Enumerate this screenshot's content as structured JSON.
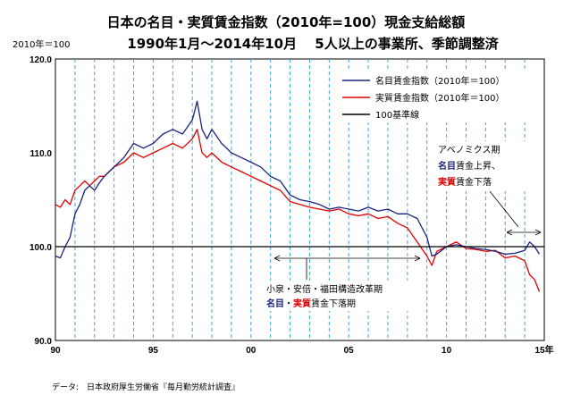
{
  "title_line1": "日本の名目・実質賃金指数（2010年=100）現金支給総額",
  "title_line2": "1990年1月～2014年10月　 5人以上の事業所、季節調整済",
  "y_unit_label": "2010年＝100",
  "source_note": "データ:　日本政府厚生労働省『毎月勤労統計調査』",
  "colors": {
    "nominal": "#1a237e",
    "real": "#e00000",
    "baseline": "#000000",
    "grid": "#3fa7d6"
  },
  "chart_data": {
    "type": "line",
    "xlim": [
      1990,
      2015
    ],
    "ylim": [
      90,
      120
    ],
    "x_ticks": [
      1990,
      1995,
      2000,
      2005,
      2010,
      2015
    ],
    "x_tick_labels": [
      "90",
      "95",
      "00",
      "05",
      "10",
      "15年"
    ],
    "y_ticks": [
      90,
      100,
      110,
      120
    ],
    "y_tick_labels": [
      "90.0",
      "100.0",
      "110.0",
      "120.0"
    ],
    "grid": "vertical dashed, yearly",
    "legend_position": "top-right",
    "series": [
      {
        "name": "名目賃金指数（2010年＝100）",
        "x": [
          1990.0,
          1990.25,
          1990.5,
          1990.75,
          1991.0,
          1991.25,
          1991.5,
          1991.75,
          1992.0,
          1992.25,
          1992.5,
          1992.75,
          1993.0,
          1993.5,
          1994.0,
          1994.5,
          1995.0,
          1995.5,
          1996.0,
          1996.5,
          1997.0,
          1997.25,
          1997.5,
          1997.75,
          1998.0,
          1998.5,
          1999.0,
          1999.5,
          2000.0,
          2000.5,
          2001.0,
          2001.5,
          2002.0,
          2002.5,
          2003.0,
          2003.5,
          2004.0,
          2004.5,
          2005.0,
          2005.5,
          2006.0,
          2006.5,
          2007.0,
          2007.5,
          2008.0,
          2008.5,
          2009.0,
          2009.25,
          2009.5,
          2010.0,
          2010.5,
          2011.0,
          2011.5,
          2012.0,
          2012.5,
          2013.0,
          2013.5,
          2014.0,
          2014.25,
          2014.5,
          2014.75
        ],
        "y": [
          99.0,
          98.8,
          100.0,
          101.0,
          103.5,
          104.5,
          106.0,
          106.5,
          106.0,
          106.8,
          107.5,
          108.0,
          108.5,
          109.5,
          111.0,
          110.5,
          111.0,
          112.0,
          112.5,
          112.0,
          113.5,
          115.5,
          112.5,
          111.5,
          112.5,
          111.0,
          110.0,
          109.5,
          109.0,
          108.5,
          107.5,
          107.0,
          105.5,
          105.0,
          104.8,
          104.5,
          104.0,
          104.2,
          104.0,
          103.8,
          104.2,
          103.8,
          104.0,
          103.5,
          103.5,
          103.0,
          101.0,
          99.0,
          99.2,
          100.0,
          100.2,
          100.0,
          99.8,
          99.7,
          99.5,
          99.2,
          99.3,
          99.6,
          100.5,
          100.0,
          99.2
        ]
      },
      {
        "name": "実質賃金指数（2010年＝100）",
        "x": [
          1990.0,
          1990.25,
          1990.5,
          1990.75,
          1991.0,
          1991.25,
          1991.5,
          1991.75,
          1992.0,
          1992.25,
          1992.5,
          1992.75,
          1993.0,
          1993.5,
          1994.0,
          1994.5,
          1995.0,
          1995.5,
          1996.0,
          1996.5,
          1997.0,
          1997.25,
          1997.5,
          1997.75,
          1998.0,
          1998.5,
          1999.0,
          1999.5,
          2000.0,
          2000.5,
          2001.0,
          2001.5,
          2002.0,
          2002.5,
          2003.0,
          2003.5,
          2004.0,
          2004.5,
          2005.0,
          2005.5,
          2006.0,
          2006.5,
          2007.0,
          2007.5,
          2008.0,
          2008.5,
          2009.0,
          2009.25,
          2009.5,
          2010.0,
          2010.5,
          2011.0,
          2011.5,
          2012.0,
          2012.5,
          2013.0,
          2013.5,
          2014.0,
          2014.25,
          2014.5,
          2014.75
        ],
        "y": [
          104.5,
          104.2,
          105.0,
          104.5,
          106.0,
          106.5,
          107.0,
          106.5,
          107.0,
          107.5,
          107.5,
          108.0,
          108.5,
          109.0,
          110.0,
          109.5,
          110.0,
          110.5,
          111.0,
          110.5,
          111.5,
          112.5,
          110.0,
          109.5,
          110.0,
          109.0,
          108.5,
          108.0,
          107.5,
          107.0,
          106.5,
          106.0,
          104.8,
          104.5,
          104.2,
          104.0,
          103.8,
          104.0,
          103.5,
          103.3,
          103.5,
          103.0,
          103.2,
          102.5,
          102.0,
          100.5,
          99.0,
          98.0,
          99.5,
          100.0,
          100.5,
          99.8,
          99.7,
          99.5,
          99.6,
          98.8,
          99.0,
          98.5,
          97.0,
          96.5,
          95.2
        ]
      },
      {
        "name": "100基準線",
        "x": [
          1990,
          2015
        ],
        "y": [
          100,
          100
        ]
      }
    ]
  },
  "annotations": {
    "abenomics": {
      "line1": "アベノミクス期",
      "line2_a": "名目",
      "line2_b": "賃金上昇、",
      "line3_a": "実質",
      "line3_b": "賃金下落"
    },
    "koizumi": {
      "line1": "小泉・安倍・福田構造改革期",
      "line2_a": "名目",
      "line2_b": "・",
      "line2_c": "実質",
      "line2_d": "賃金下落期"
    }
  }
}
